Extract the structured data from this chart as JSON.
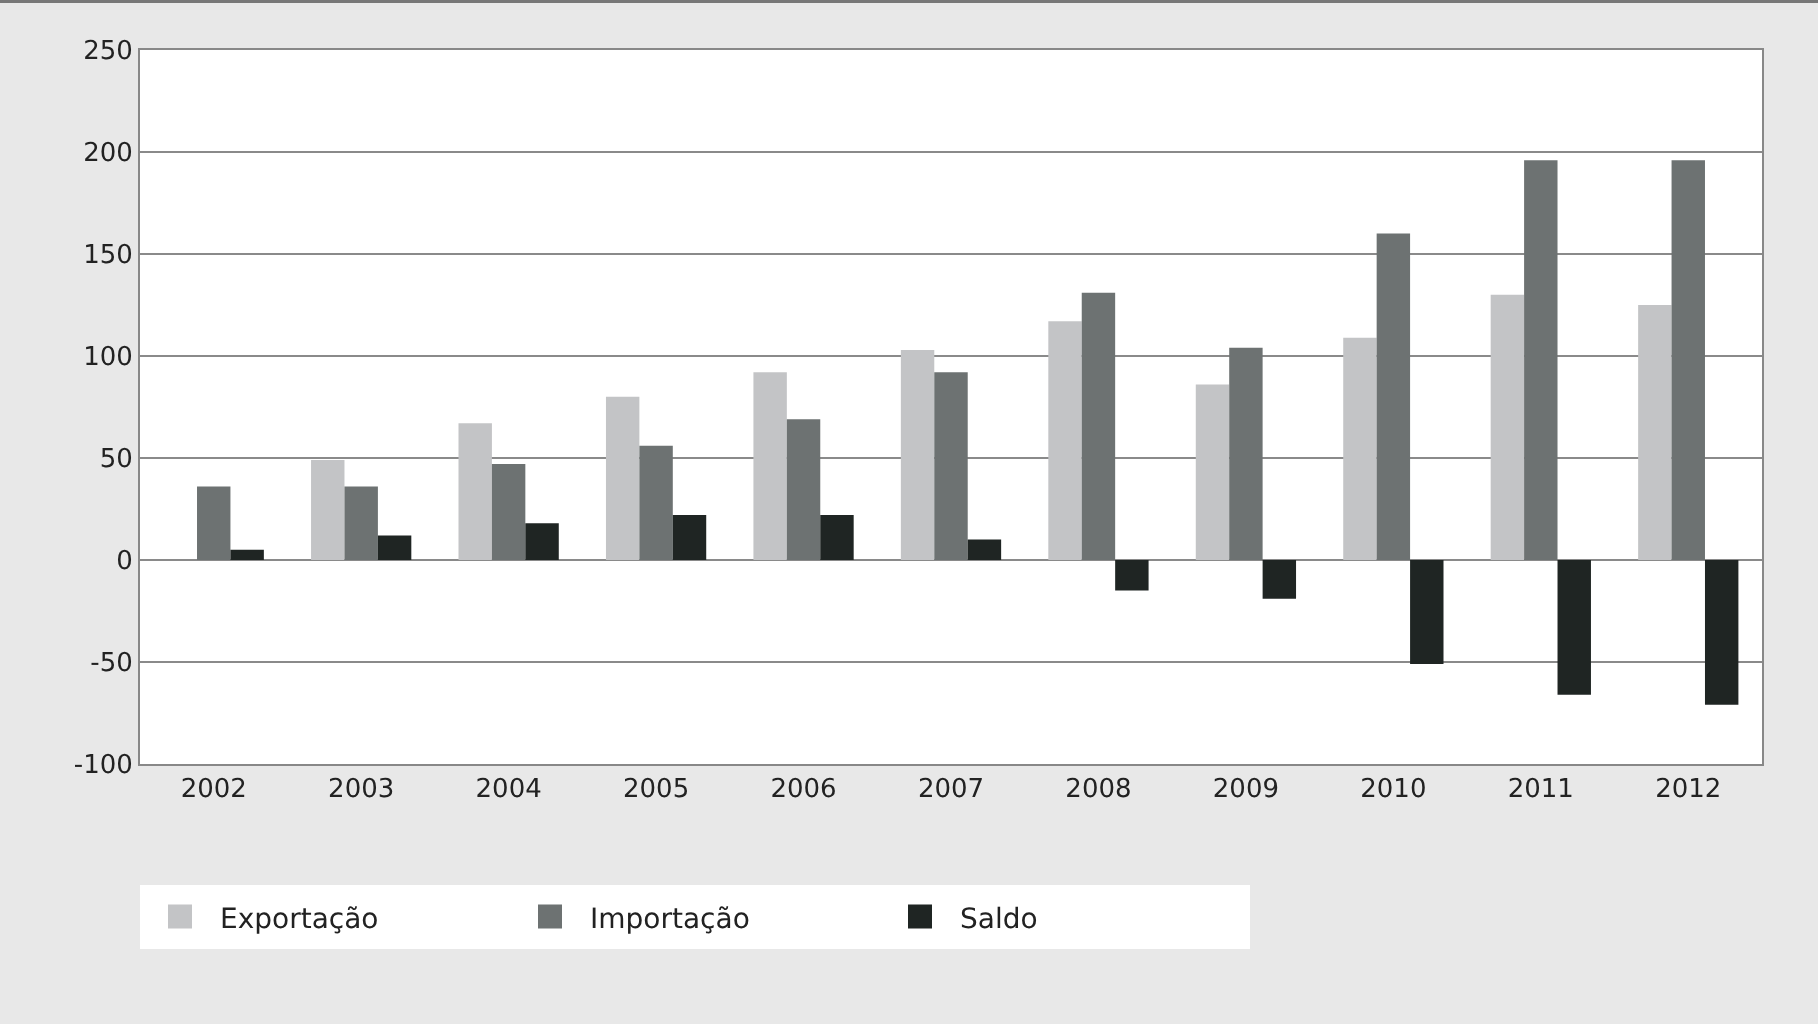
{
  "chart_data": {
    "type": "bar",
    "categories": [
      "2002",
      "2003",
      "2004",
      "2005",
      "2006",
      "2007",
      "2008",
      "2009",
      "2010",
      "2011",
      "2012"
    ],
    "series": [
      {
        "name": "Exportação",
        "color": "#c3c4c6",
        "values": [
          null,
          49,
          67,
          80,
          92,
          103,
          117,
          86,
          109,
          130,
          125
        ]
      },
      {
        "name": "Importação",
        "color": "#6d7272",
        "values": [
          36,
          36,
          47,
          56,
          69,
          92,
          131,
          104,
          160,
          196,
          196
        ]
      },
      {
        "name": "Saldo",
        "color": "#1f2523",
        "values": [
          5,
          12,
          18,
          22,
          22,
          10,
          -15,
          -19,
          -51,
          -66,
          -71
        ]
      }
    ],
    "ylim": [
      -100,
      250
    ],
    "yticks": [
      -100,
      -50,
      0,
      50,
      100,
      150,
      200,
      250
    ],
    "grid": "y",
    "legend": "bottom"
  }
}
